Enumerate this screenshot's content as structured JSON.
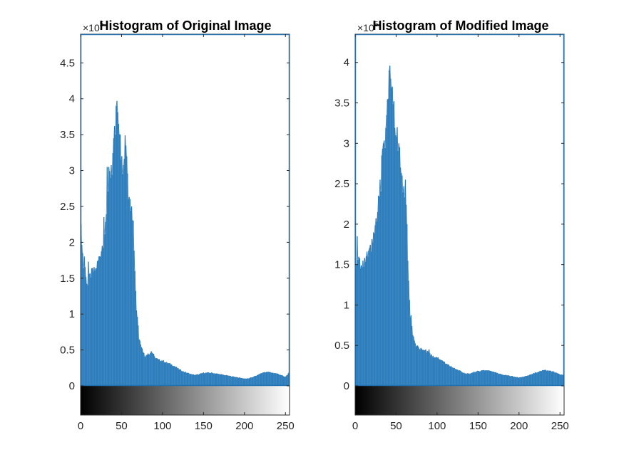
{
  "chart_data": [
    {
      "type": "bar",
      "title": "Histogram of Original Image",
      "xlabel": "",
      "ylabel": "",
      "y_exponent_label": "×10",
      "y_exponent_power": "5",
      "xlim": [
        0,
        255
      ],
      "ylim": [
        0,
        4.9
      ],
      "x_ticks": [
        "0",
        "50",
        "100",
        "150",
        "200",
        "250"
      ],
      "x_tick_values": [
        0,
        50,
        100,
        150,
        200,
        250
      ],
      "y_ticks": [
        "0",
        "0.5",
        "1",
        "1.5",
        "2",
        "2.5",
        "3",
        "3.5",
        "4",
        "4.5"
      ],
      "y_tick_values": [
        0,
        0.5,
        1,
        1.5,
        2,
        2.5,
        3,
        3.5,
        4,
        4.5
      ],
      "grid": false,
      "colorbar": "grayscale 0-255",
      "bar_color": "#2e7ebd",
      "anchors": [
        [
          0,
          2.35
        ],
        [
          2,
          1.45
        ],
        [
          4,
          1.82
        ],
        [
          6,
          1.5
        ],
        [
          8,
          1.42
        ],
        [
          10,
          1.5
        ],
        [
          12,
          1.55
        ],
        [
          14,
          1.6
        ],
        [
          16,
          1.6
        ],
        [
          18,
          1.62
        ],
        [
          20,
          1.7
        ],
        [
          22,
          1.78
        ],
        [
          24,
          1.85
        ],
        [
          26,
          1.95
        ],
        [
          28,
          2.05
        ],
        [
          30,
          2.2
        ],
        [
          32,
          2.5
        ],
        [
          34,
          2.95
        ],
        [
          36,
          3.0
        ],
        [
          38,
          2.95
        ],
        [
          40,
          3.4
        ],
        [
          42,
          3.4
        ],
        [
          44,
          3.8
        ],
        [
          46,
          3.65
        ],
        [
          48,
          3.35
        ],
        [
          50,
          3.15
        ],
        [
          52,
          3.0
        ],
        [
          54,
          3.3
        ],
        [
          56,
          3.2
        ],
        [
          58,
          2.85
        ],
        [
          60,
          2.55
        ],
        [
          62,
          2.5
        ],
        [
          64,
          2.3
        ],
        [
          66,
          1.6
        ],
        [
          68,
          1.1
        ],
        [
          70,
          0.85
        ],
        [
          72,
          0.65
        ],
        [
          74,
          0.55
        ],
        [
          76,
          0.48
        ],
        [
          78,
          0.42
        ],
        [
          80,
          0.42
        ],
        [
          82,
          0.44
        ],
        [
          84,
          0.45
        ],
        [
          86,
          0.47
        ],
        [
          88,
          0.46
        ],
        [
          90,
          0.4
        ],
        [
          95,
          0.36
        ],
        [
          100,
          0.35
        ],
        [
          105,
          0.32
        ],
        [
          110,
          0.3
        ],
        [
          115,
          0.27
        ],
        [
          120,
          0.23
        ],
        [
          125,
          0.2
        ],
        [
          130,
          0.18
        ],
        [
          135,
          0.16
        ],
        [
          140,
          0.15
        ],
        [
          145,
          0.16
        ],
        [
          150,
          0.18
        ],
        [
          155,
          0.18
        ],
        [
          160,
          0.18
        ],
        [
          165,
          0.17
        ],
        [
          170,
          0.16
        ],
        [
          175,
          0.15
        ],
        [
          180,
          0.14
        ],
        [
          185,
          0.13
        ],
        [
          190,
          0.12
        ],
        [
          195,
          0.11
        ],
        [
          200,
          0.1
        ],
        [
          205,
          0.1
        ],
        [
          210,
          0.12
        ],
        [
          215,
          0.14
        ],
        [
          220,
          0.17
        ],
        [
          225,
          0.19
        ],
        [
          230,
          0.19
        ],
        [
          235,
          0.18
        ],
        [
          240,
          0.17
        ],
        [
          245,
          0.15
        ],
        [
          250,
          0.12
        ],
        [
          255,
          0.18
        ]
      ],
      "spikes": [
        [
          2,
          1.85
        ],
        [
          9,
          1.73
        ],
        [
          28,
          2.35
        ],
        [
          32,
          3.05
        ],
        [
          34,
          3.05
        ],
        [
          36,
          2.9
        ],
        [
          40,
          3.45
        ],
        [
          41,
          3.62
        ],
        [
          42,
          3.5
        ],
        [
          43,
          3.9
        ],
        [
          44,
          3.97
        ],
        [
          46,
          3.65
        ],
        [
          48,
          3.5
        ],
        [
          50,
          3.2
        ],
        [
          51,
          2.95
        ],
        [
          54,
          3.49
        ],
        [
          56,
          3.2
        ],
        [
          58,
          2.6
        ],
        [
          60,
          2.6
        ],
        [
          62,
          2.5
        ],
        [
          64,
          2.3
        ],
        [
          66,
          1.6
        ],
        [
          68,
          1.05
        ],
        [
          71,
          0.65
        ],
        [
          82,
          0.45
        ],
        [
          86,
          0.48
        ],
        [
          88,
          0.45
        ]
      ]
    },
    {
      "type": "bar",
      "title": "Histogram of Modified Image",
      "xlabel": "",
      "ylabel": "",
      "y_exponent_label": "×10",
      "y_exponent_power": "5",
      "xlim": [
        0,
        255
      ],
      "ylim": [
        0,
        4.35
      ],
      "x_ticks": [
        "0",
        "50",
        "100",
        "150",
        "200",
        "250"
      ],
      "x_tick_values": [
        0,
        50,
        100,
        150,
        200,
        250
      ],
      "y_ticks": [
        "0",
        "0.5",
        "1",
        "1.5",
        "2",
        "2.5",
        "3",
        "3.5",
        "4"
      ],
      "y_tick_values": [
        0,
        0.5,
        1,
        1.5,
        2,
        2.5,
        3,
        3.5,
        4
      ],
      "grid": false,
      "colorbar": "grayscale 0-255",
      "bar_color": "#2e7ebd",
      "anchors": [
        [
          0,
          1.45
        ],
        [
          2,
          1.55
        ],
        [
          4,
          1.65
        ],
        [
          6,
          1.5
        ],
        [
          8,
          1.45
        ],
        [
          10,
          1.5
        ],
        [
          12,
          1.55
        ],
        [
          14,
          1.6
        ],
        [
          16,
          1.62
        ],
        [
          18,
          1.68
        ],
        [
          20,
          1.75
        ],
        [
          22,
          1.85
        ],
        [
          24,
          1.95
        ],
        [
          26,
          2.05
        ],
        [
          28,
          2.15
        ],
        [
          30,
          2.35
        ],
        [
          32,
          2.65
        ],
        [
          34,
          3.0
        ],
        [
          36,
          3.0
        ],
        [
          38,
          3.3
        ],
        [
          40,
          3.6
        ],
        [
          42,
          3.85
        ],
        [
          44,
          3.75
        ],
        [
          46,
          3.6
        ],
        [
          48,
          3.2
        ],
        [
          50,
          3.05
        ],
        [
          52,
          2.95
        ],
        [
          54,
          2.85
        ],
        [
          56,
          2.7
        ],
        [
          58,
          2.45
        ],
        [
          60,
          2.4
        ],
        [
          62,
          2.3
        ],
        [
          64,
          1.6
        ],
        [
          66,
          1.1
        ],
        [
          68,
          0.85
        ],
        [
          70,
          0.65
        ],
        [
          72,
          0.55
        ],
        [
          74,
          0.5
        ],
        [
          76,
          0.48
        ],
        [
          78,
          0.46
        ],
        [
          80,
          0.45
        ],
        [
          82,
          0.44
        ],
        [
          84,
          0.42
        ],
        [
          86,
          0.43
        ],
        [
          88,
          0.42
        ],
        [
          90,
          0.4
        ],
        [
          95,
          0.36
        ],
        [
          100,
          0.35
        ],
        [
          105,
          0.32
        ],
        [
          110,
          0.28
        ],
        [
          115,
          0.25
        ],
        [
          120,
          0.22
        ],
        [
          125,
          0.2
        ],
        [
          130,
          0.17
        ],
        [
          135,
          0.15
        ],
        [
          140,
          0.15
        ],
        [
          145,
          0.17
        ],
        [
          150,
          0.18
        ],
        [
          155,
          0.19
        ],
        [
          160,
          0.19
        ],
        [
          165,
          0.18
        ],
        [
          170,
          0.17
        ],
        [
          175,
          0.15
        ],
        [
          180,
          0.14
        ],
        [
          185,
          0.13
        ],
        [
          190,
          0.12
        ],
        [
          195,
          0.11
        ],
        [
          200,
          0.1
        ],
        [
          205,
          0.11
        ],
        [
          210,
          0.12
        ],
        [
          215,
          0.14
        ],
        [
          220,
          0.16
        ],
        [
          225,
          0.18
        ],
        [
          230,
          0.19
        ],
        [
          235,
          0.19
        ],
        [
          240,
          0.18
        ],
        [
          245,
          0.16
        ],
        [
          250,
          0.14
        ],
        [
          255,
          0.13
        ]
      ],
      "spikes": [
        [
          2,
          1.85
        ],
        [
          9,
          1.55
        ],
        [
          28,
          2.35
        ],
        [
          30,
          2.55
        ],
        [
          32,
          2.85
        ],
        [
          34,
          3.0
        ],
        [
          38,
          3.35
        ],
        [
          40,
          3.55
        ],
        [
          41,
          3.9
        ],
        [
          42,
          3.96
        ],
        [
          43,
          3.8
        ],
        [
          45,
          3.7
        ],
        [
          47,
          3.52
        ],
        [
          49,
          3.1
        ],
        [
          51,
          3.2
        ],
        [
          53,
          3.0
        ],
        [
          55,
          2.7
        ],
        [
          57,
          2.6
        ],
        [
          59,
          2.47
        ],
        [
          61,
          2.55
        ],
        [
          63,
          2.0
        ],
        [
          65,
          1.3
        ],
        [
          67,
          0.85
        ],
        [
          86,
          0.45
        ],
        [
          90,
          0.45
        ]
      ]
    }
  ]
}
